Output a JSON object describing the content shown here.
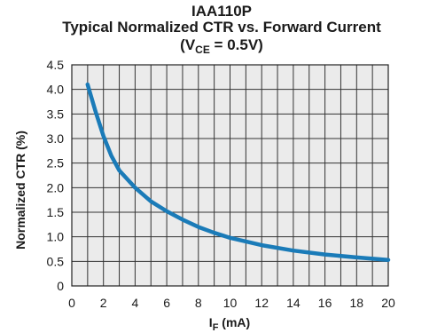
{
  "chart_data": {
    "type": "line",
    "title": "IAA110P",
    "subtitle": "Typical Normalized CTR vs. Forward Current",
    "condition": {
      "prefix": "(V",
      "subscript": "CE",
      "suffix": " = 0.5V)"
    },
    "xlabel": {
      "main": "I",
      "subscript": "F",
      "suffix": " (mA)"
    },
    "ylabel": "Normalized CTR (%)",
    "xlim": [
      0,
      20
    ],
    "ylim": [
      0,
      4.5
    ],
    "x_ticks": [
      "0",
      "2",
      "4",
      "6",
      "8",
      "10",
      "12",
      "14",
      "16",
      "18",
      "20"
    ],
    "y_ticks": [
      "0",
      "0.5",
      "1.0",
      "1.5",
      "2.0",
      "2.5",
      "3.0",
      "3.5",
      "4.0",
      "4.5"
    ],
    "x_minor_grid": [
      1,
      3,
      5,
      7,
      9,
      11,
      13,
      15,
      17,
      19
    ],
    "grid": true,
    "plot_background": "#ebebeb",
    "series": [
      {
        "color": "#1a7bb8",
        "x": [
          1,
          1.5,
          2,
          2.5,
          3,
          4,
          5,
          6,
          7,
          8,
          9,
          10,
          12,
          14,
          16,
          18,
          20
        ],
        "y": [
          4.1,
          3.55,
          3.05,
          2.65,
          2.35,
          2.0,
          1.72,
          1.52,
          1.35,
          1.2,
          1.08,
          0.98,
          0.83,
          0.72,
          0.64,
          0.58,
          0.53
        ]
      }
    ]
  }
}
